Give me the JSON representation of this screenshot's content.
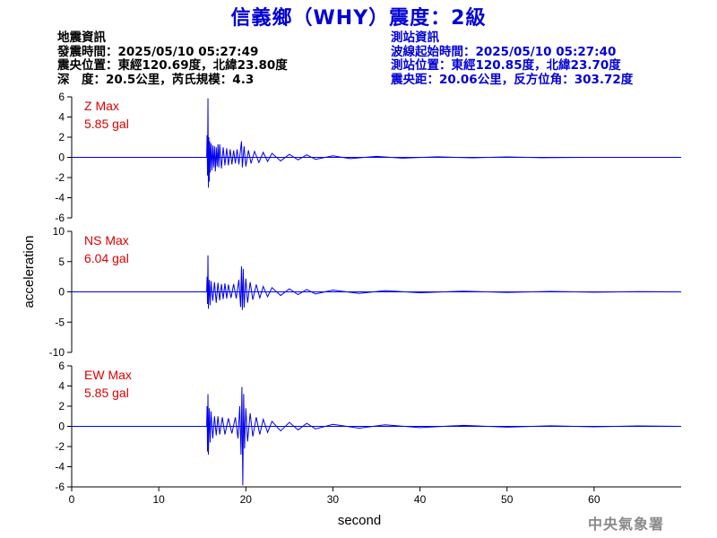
{
  "title": "信義鄉（WHY）震度：2級",
  "event_info": {
    "heading": "地震資訊",
    "time": "發震時間：2025/05/10 05:27:49",
    "epicenter": "震央位置：東經120.69度，北緯23.80度",
    "depth_magnitude": "深　度：20.5公里，芮氏規模：4.3"
  },
  "station_info": {
    "heading": "測站資訊",
    "wave_start": "波線起始時間：2025/05/10 05:27:40",
    "location": "測站位置：東經120.85度，北緯23.70度",
    "distance_azimuth": "震央距：20.06公里，反方位角：303.72度"
  },
  "agency": "中央氣象署",
  "colors": {
    "title": "#0000d8",
    "trace": "#0000ee",
    "max_label": "#dd0000",
    "station_text": "#0000d8",
    "agency": "#8a8a8a"
  },
  "chart_data": {
    "type": "line",
    "xlabel": "second",
    "ylabel": "acceleration",
    "xlim": [
      0,
      70
    ],
    "xticks": [
      0,
      10,
      20,
      30,
      40,
      50,
      60
    ],
    "panels": [
      {
        "channel": "Z",
        "max_label": "Z Max",
        "max_value": "5.85 gal",
        "ylim": [
          -6,
          6
        ],
        "yticks": [
          6,
          4,
          2,
          0,
          -2,
          -4,
          -6
        ],
        "baseline": 0,
        "waveform": [
          [
            0,
            0
          ],
          [
            15.5,
            0
          ],
          [
            15.55,
            2.2
          ],
          [
            15.6,
            -1.8
          ],
          [
            15.65,
            5.85
          ],
          [
            15.7,
            -3.0
          ],
          [
            15.75,
            2.0
          ],
          [
            15.8,
            -2.4
          ],
          [
            15.85,
            1.6
          ],
          [
            15.9,
            -1.5
          ],
          [
            16.0,
            1.4
          ],
          [
            16.1,
            -1.3
          ],
          [
            16.2,
            1.2
          ],
          [
            16.3,
            -1.0
          ],
          [
            16.4,
            1.1
          ],
          [
            16.5,
            -1.4
          ],
          [
            16.6,
            1.0
          ],
          [
            16.7,
            -0.9
          ],
          [
            16.8,
            1.3
          ],
          [
            16.9,
            -1.0
          ],
          [
            17.0,
            1.3
          ],
          [
            17.2,
            -1.1
          ],
          [
            17.4,
            1.0
          ],
          [
            17.6,
            -0.8
          ],
          [
            17.8,
            0.9
          ],
          [
            18.0,
            -0.8
          ],
          [
            18.2,
            0.8
          ],
          [
            18.4,
            -0.7
          ],
          [
            18.6,
            0.7
          ],
          [
            18.8,
            -0.6
          ],
          [
            19.0,
            0.8
          ],
          [
            19.2,
            -0.7
          ],
          [
            19.5,
            1.6
          ],
          [
            19.6,
            -1.0
          ],
          [
            19.8,
            1.1
          ],
          [
            20.0,
            -0.9
          ],
          [
            20.3,
            0.7
          ],
          [
            20.6,
            -0.6
          ],
          [
            21.0,
            0.6
          ],
          [
            21.5,
            -0.5
          ],
          [
            22.0,
            0.5
          ],
          [
            22.5,
            -0.4
          ],
          [
            23.0,
            0.4
          ],
          [
            24.0,
            -0.35
          ],
          [
            25.0,
            0.3
          ],
          [
            26.0,
            -0.25
          ],
          [
            27.0,
            0.25
          ],
          [
            28.0,
            -0.2
          ],
          [
            30.0,
            0.15
          ],
          [
            32.0,
            -0.12
          ],
          [
            35.0,
            0.1
          ],
          [
            38.0,
            -0.08
          ],
          [
            42.0,
            0.06
          ],
          [
            46.0,
            -0.05
          ],
          [
            50.0,
            0.04
          ],
          [
            54.0,
            -0.03
          ],
          [
            60.0,
            0
          ],
          [
            70,
            0
          ]
        ]
      },
      {
        "channel": "NS",
        "max_label": "NS Max",
        "max_value": "6.04 gal",
        "ylim": [
          -10,
          10
        ],
        "yticks": [
          10,
          5,
          0,
          -5,
          -10
        ],
        "baseline": 0,
        "waveform": [
          [
            0,
            0
          ],
          [
            15.5,
            0
          ],
          [
            15.55,
            2.5
          ],
          [
            15.6,
            -2.0
          ],
          [
            15.65,
            6.04
          ],
          [
            15.7,
            -2.8
          ],
          [
            15.8,
            2.0
          ],
          [
            15.9,
            -2.2
          ],
          [
            16.0,
            1.8
          ],
          [
            16.2,
            -1.5
          ],
          [
            16.4,
            1.6
          ],
          [
            16.6,
            -1.8
          ],
          [
            16.8,
            1.5
          ],
          [
            17.0,
            -1.4
          ],
          [
            17.2,
            1.3
          ],
          [
            17.4,
            -1.2
          ],
          [
            17.6,
            1.4
          ],
          [
            17.8,
            -1.1
          ],
          [
            18.0,
            1.2
          ],
          [
            18.3,
            -1.0
          ],
          [
            18.6,
            1.3
          ],
          [
            18.9,
            -1.1
          ],
          [
            19.2,
            2.0
          ],
          [
            19.4,
            -2.5
          ],
          [
            19.5,
            4.2
          ],
          [
            19.6,
            -3.0
          ],
          [
            19.7,
            3.8
          ],
          [
            19.8,
            -2.6
          ],
          [
            20.0,
            2.2
          ],
          [
            20.2,
            -1.8
          ],
          [
            20.5,
            1.6
          ],
          [
            20.8,
            -1.3
          ],
          [
            21.2,
            1.2
          ],
          [
            21.6,
            -1.0
          ],
          [
            22.0,
            0.9
          ],
          [
            22.5,
            -0.8
          ],
          [
            23.0,
            0.7
          ],
          [
            24.0,
            -0.6
          ],
          [
            25.0,
            0.5
          ],
          [
            26.0,
            -0.45
          ],
          [
            27.0,
            0.4
          ],
          [
            28.0,
            -0.35
          ],
          [
            30.0,
            0.3
          ],
          [
            33.0,
            -0.25
          ],
          [
            36.0,
            0.2
          ],
          [
            40.0,
            -0.15
          ],
          [
            45.0,
            0.12
          ],
          [
            50.0,
            -0.1
          ],
          [
            55.0,
            0.08
          ],
          [
            60.0,
            -0.05
          ],
          [
            65.0,
            0.04
          ],
          [
            70,
            0
          ]
        ]
      },
      {
        "channel": "EW",
        "max_label": "EW Max",
        "max_value": "5.85 gal",
        "ylim": [
          -6,
          6
        ],
        "yticks": [
          6,
          4,
          2,
          0,
          -2,
          -4,
          -6
        ],
        "baseline": 0,
        "waveform": [
          [
            0,
            0
          ],
          [
            15.5,
            0
          ],
          [
            15.55,
            2.0
          ],
          [
            15.6,
            -2.5
          ],
          [
            15.65,
            3.2
          ],
          [
            15.7,
            -2.8
          ],
          [
            15.8,
            1.8
          ],
          [
            15.9,
            -1.6
          ],
          [
            16.0,
            1.5
          ],
          [
            16.2,
            -1.2
          ],
          [
            16.4,
            1.0
          ],
          [
            16.6,
            -0.9
          ],
          [
            16.8,
            1.0
          ],
          [
            17.0,
            -0.8
          ],
          [
            17.3,
            0.9
          ],
          [
            17.6,
            -0.8
          ],
          [
            18.0,
            0.8
          ],
          [
            18.4,
            -0.7
          ],
          [
            18.8,
            0.9
          ],
          [
            19.1,
            -1.2
          ],
          [
            19.3,
            2.0
          ],
          [
            19.45,
            -2.8
          ],
          [
            19.55,
            3.9
          ],
          [
            19.65,
            -5.85
          ],
          [
            19.75,
            3.2
          ],
          [
            19.85,
            -2.2
          ],
          [
            20.0,
            1.8
          ],
          [
            20.2,
            -1.5
          ],
          [
            20.5,
            1.3
          ],
          [
            20.8,
            -1.0
          ],
          [
            21.2,
            0.9
          ],
          [
            21.6,
            -0.8
          ],
          [
            22.0,
            0.7
          ],
          [
            22.5,
            -0.6
          ],
          [
            23.0,
            0.5
          ],
          [
            24.0,
            -0.45
          ],
          [
            25.0,
            0.4
          ],
          [
            26.0,
            -0.35
          ],
          [
            27.0,
            0.3
          ],
          [
            28.0,
            -0.25
          ],
          [
            30.0,
            0.2
          ],
          [
            33.0,
            -0.18
          ],
          [
            36.0,
            0.15
          ],
          [
            40.0,
            -0.12
          ],
          [
            45.0,
            0.1
          ],
          [
            50.0,
            -0.08
          ],
          [
            55.0,
            0.06
          ],
          [
            60.0,
            -0.05
          ],
          [
            65.0,
            0.04
          ],
          [
            70,
            0
          ]
        ]
      }
    ]
  }
}
